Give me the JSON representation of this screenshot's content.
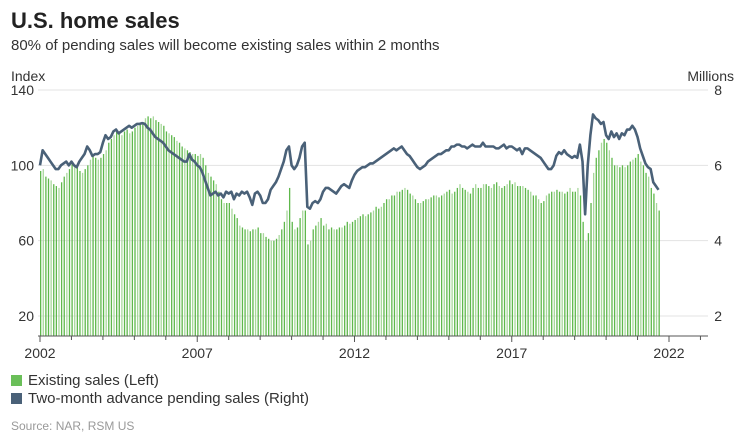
{
  "title": "U.S. home sales",
  "subtitle": "80% of pending sales will become existing sales within 2 months",
  "axes": {
    "left_unit": "Index",
    "right_unit": "Millions"
  },
  "legend": [
    {
      "label": "Existing sales (Left)",
      "color": "#6abf59"
    },
    {
      "label": "Two-month advance pending sales (Right)",
      "color": "#4a6178"
    }
  ],
  "source": "Source: NAR, RSM US",
  "chart_data": {
    "type": "bar+line",
    "title": "U.S. home sales",
    "subtitle": "80% of pending sales will become existing sales within 2 months",
    "x_start": "2002-01",
    "frequency": "monthly",
    "xticks": [
      "2002",
      "2007",
      "2012",
      "2017",
      "2022"
    ],
    "left_axis": {
      "label": "Index",
      "ticks": [
        20,
        60,
        100,
        140
      ],
      "range": [
        9,
        140
      ]
    },
    "right_axis": {
      "label": "Millions",
      "ticks": [
        2,
        4,
        6,
        8
      ],
      "range": [
        1.45,
        8
      ]
    },
    "grid": true,
    "legend_position": "bottom-left",
    "series": [
      {
        "name": "Existing sales (Left)",
        "type": "bar",
        "axis": "left",
        "color": "#6abf59",
        "values": [
          97,
          98,
          94,
          93,
          92,
          90,
          89,
          88,
          91,
          94,
          96,
          98,
          101,
          100,
          99,
          97,
          96,
          98,
          100,
          103,
          106,
          104,
          103,
          104,
          106,
          108,
          112,
          114,
          116,
          118,
          117,
          116,
          118,
          119,
          117,
          118,
          120,
          121,
          122,
          123,
          125,
          126,
          125,
          126,
          124,
          123,
          122,
          121,
          118,
          117,
          116,
          115,
          113,
          112,
          110,
          109,
          108,
          107,
          106,
          106,
          105,
          106,
          104,
          100,
          96,
          94,
          92,
          90,
          86,
          82,
          80,
          80,
          80,
          77,
          74,
          72,
          68,
          67,
          66,
          66,
          65,
          66,
          66,
          67,
          64,
          64,
          62,
          61,
          60,
          60,
          61,
          63,
          66,
          70,
          76,
          88,
          70,
          66,
          67,
          72,
          76,
          76,
          58,
          60,
          66,
          68,
          70,
          72,
          68,
          69,
          66,
          67,
          66,
          66,
          67,
          67,
          68,
          70,
          69,
          70,
          71,
          72,
          73,
          74,
          73,
          74,
          75,
          76,
          78,
          77,
          78,
          80,
          82,
          82,
          84,
          84,
          86,
          86,
          87,
          88,
          87,
          85,
          84,
          82,
          80,
          80,
          81,
          82,
          82,
          83,
          84,
          84,
          83,
          84,
          85,
          86,
          87,
          85,
          86,
          88,
          90,
          88,
          87,
          86,
          85,
          88,
          90,
          88,
          88,
          90,
          90,
          89,
          88,
          90,
          91,
          89,
          88,
          89,
          90,
          92,
          90,
          91,
          89,
          89,
          89,
          88,
          87,
          86,
          84,
          84,
          82,
          80,
          81,
          84,
          85,
          86,
          86,
          87,
          86,
          86,
          85,
          86,
          88,
          86,
          86,
          88,
          84,
          70,
          60,
          64,
          80,
          96,
          104,
          108,
          112,
          114,
          112,
          108,
          104,
          100,
          100,
          99,
          100,
          99,
          100,
          102,
          103,
          104,
          106,
          102,
          100,
          96,
          94,
          88,
          85,
          80,
          76
        ]
      },
      {
        "name": "Two-month advance pending sales (Right)",
        "type": "line",
        "axis": "right",
        "color": "#4a6178",
        "values": [
          6.0,
          6.4,
          6.3,
          6.2,
          6.1,
          6.0,
          5.9,
          5.9,
          6.0,
          6.05,
          6.1,
          6.0,
          6.1,
          6.0,
          5.95,
          6.1,
          6.2,
          6.3,
          6.5,
          6.4,
          6.25,
          6.3,
          6.3,
          6.35,
          6.6,
          6.8,
          6.7,
          6.75,
          6.9,
          6.95,
          6.85,
          6.9,
          6.95,
          7.0,
          7.05,
          7.0,
          7.05,
          7.1,
          7.1,
          7.12,
          7.1,
          7.0,
          6.95,
          6.85,
          6.75,
          6.7,
          6.65,
          6.6,
          6.5,
          6.4,
          6.35,
          6.3,
          6.25,
          6.2,
          6.15,
          6.1,
          6.1,
          6.3,
          6.15,
          6.1,
          6.0,
          5.95,
          5.8,
          5.6,
          5.4,
          5.2,
          5.25,
          5.3,
          5.2,
          5.25,
          5.15,
          5.3,
          5.25,
          5.3,
          5.1,
          5.25,
          5.2,
          5.3,
          5.25,
          5.3,
          5.15,
          4.95,
          5.25,
          5.3,
          5.2,
          5.0,
          5.0,
          5.1,
          5.35,
          5.45,
          5.55,
          5.7,
          5.9,
          6.1,
          6.4,
          6.5,
          6.0,
          5.9,
          6.0,
          6.2,
          6.5,
          6.6,
          4.9,
          4.85,
          5.0,
          5.05,
          5.0,
          5.1,
          5.3,
          5.4,
          5.4,
          5.35,
          5.3,
          5.25,
          5.35,
          5.45,
          5.5,
          5.45,
          5.4,
          5.6,
          5.75,
          5.85,
          5.9,
          5.95,
          5.95,
          6.0,
          6.05,
          6.05,
          6.1,
          6.15,
          6.2,
          6.25,
          6.3,
          6.35,
          6.4,
          6.45,
          6.4,
          6.45,
          6.5,
          6.4,
          6.3,
          6.25,
          6.15,
          6.05,
          5.95,
          5.9,
          5.95,
          6.0,
          6.1,
          6.15,
          6.2,
          6.25,
          6.3,
          6.3,
          6.35,
          6.4,
          6.4,
          6.5,
          6.5,
          6.55,
          6.55,
          6.5,
          6.5,
          6.45,
          6.5,
          6.55,
          6.5,
          6.5,
          6.5,
          6.6,
          6.5,
          6.5,
          6.5,
          6.5,
          6.45,
          6.45,
          6.5,
          6.55,
          6.45,
          6.5,
          6.5,
          6.45,
          6.4,
          6.45,
          6.3,
          6.45,
          6.45,
          6.4,
          6.35,
          6.3,
          6.25,
          6.2,
          6.1,
          6.0,
          5.9,
          5.9,
          6.0,
          6.25,
          6.35,
          6.3,
          6.4,
          6.3,
          6.25,
          6.2,
          6.25,
          6.2,
          6.55,
          6.1,
          4.7,
          6.0,
          6.8,
          7.35,
          7.25,
          7.2,
          7.1,
          7.15,
          6.8,
          6.7,
          6.9,
          6.75,
          6.85,
          6.7,
          6.85,
          6.8,
          6.95,
          6.95,
          7.05,
          6.95,
          6.75,
          6.45,
          6.25,
          6.05,
          5.95,
          5.9,
          5.55,
          5.45,
          5.35
        ]
      }
    ]
  }
}
